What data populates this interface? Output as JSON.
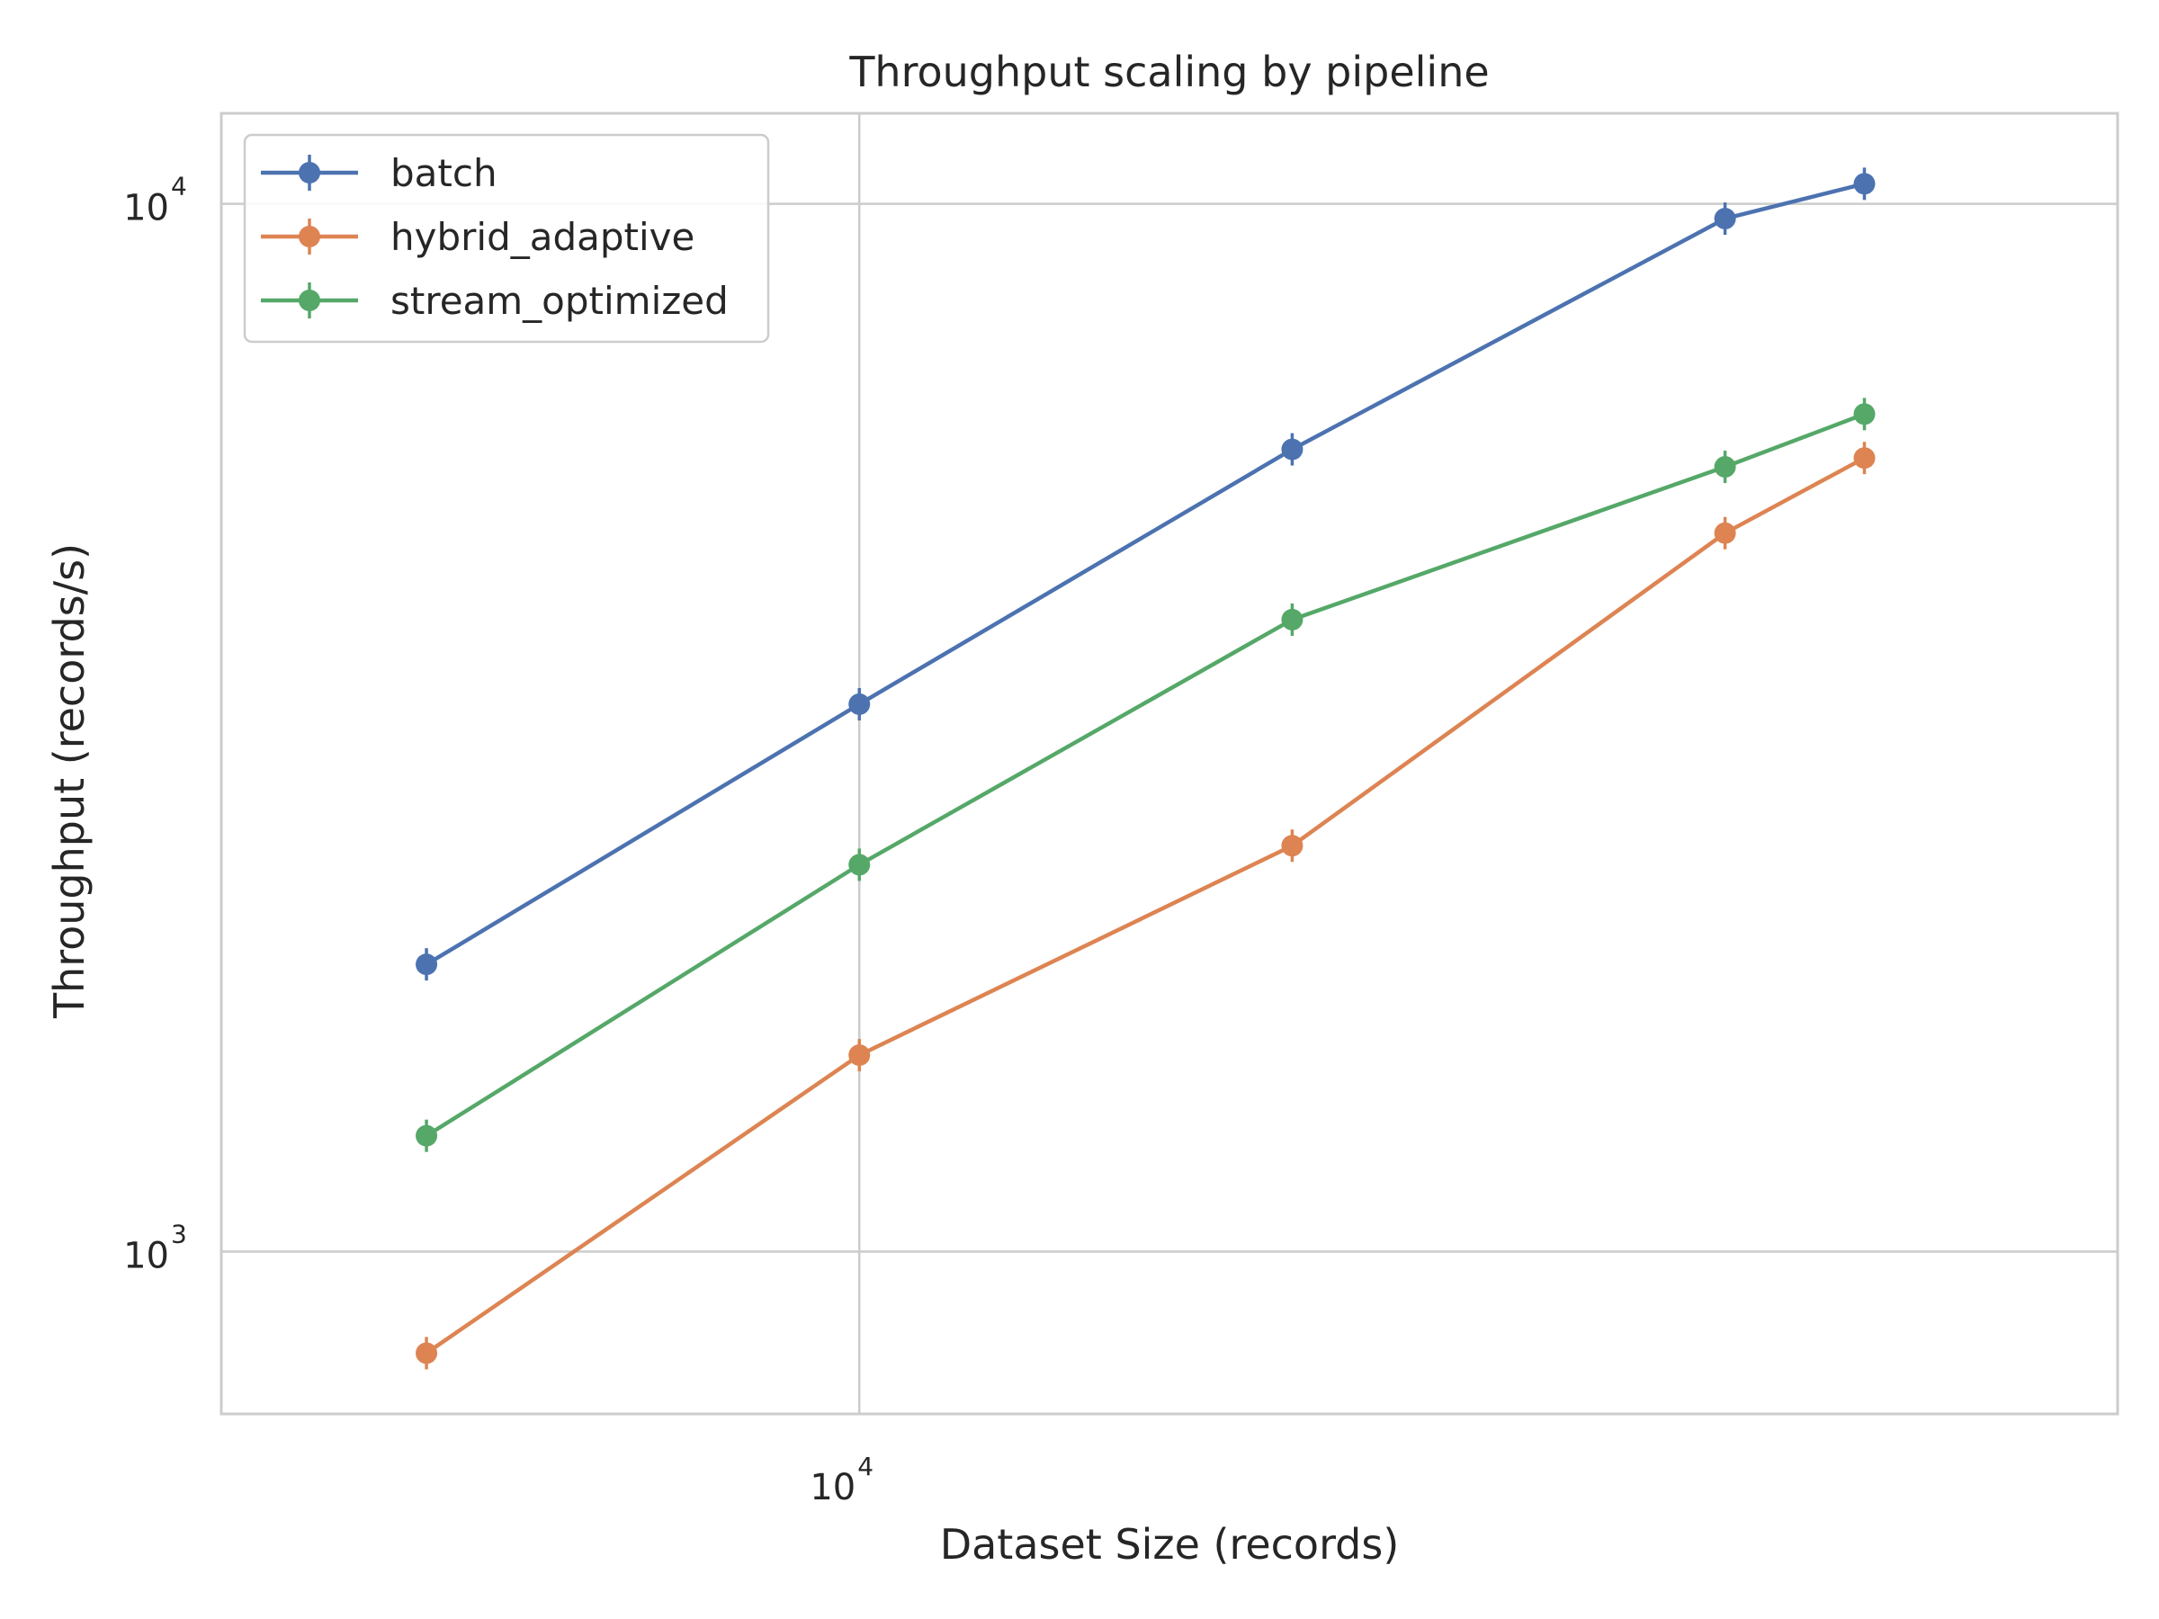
{
  "chart_data": {
    "type": "line",
    "title": "Throughput scaling by pipeline",
    "xlabel": "Dataset Size (records)",
    "ylabel": "Throughput (records/s)",
    "xscale": "log",
    "yscale": "log",
    "xlim": [
      3600,
      75000
    ],
    "ylim": [
      700,
      12200
    ],
    "grid": true,
    "legend_position": "upper left",
    "x_ticks": [
      {
        "base": "10",
        "exp": "4",
        "value": 10000
      }
    ],
    "y_ticks": [
      {
        "base": "10",
        "exp": "3",
        "value": 1000
      },
      {
        "base": "10",
        "exp": "4",
        "value": 10000
      }
    ],
    "x": [
      5000,
      10000,
      20000,
      40000,
      50000
    ],
    "series": [
      {
        "name": "batch",
        "color": "#4c72b0",
        "values": [
          1880,
          3330,
          5830,
          9680,
          10450
        ]
      },
      {
        "name": "hybrid_adaptive",
        "color": "#dd8452",
        "values": [
          800,
          1540,
          2440,
          4850,
          5720
        ]
      },
      {
        "name": "stream_optimized",
        "color": "#55a868",
        "values": [
          1290,
          2340,
          4010,
          5610,
          6300
        ]
      }
    ]
  }
}
